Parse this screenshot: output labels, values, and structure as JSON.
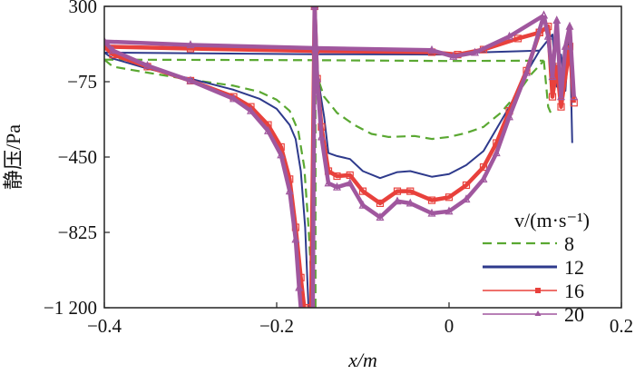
{
  "chart_data": {
    "type": "line",
    "title": "",
    "xlabel": "x/m",
    "ylabel": "静压/Pa",
    "xlim": [
      -0.4,
      0.2
    ],
    "ylim": [
      -1200,
      300
    ],
    "xticks": [
      -0.4,
      -0.2,
      0,
      0.2
    ],
    "xtick_labels": [
      "−0.4",
      "−0.2",
      "0",
      "0.2"
    ],
    "yticks": [
      300,
      -75,
      -450,
      -825,
      -1200
    ],
    "ytick_labels": [
      "300",
      "−75",
      "−450",
      "−825",
      "−1 200"
    ],
    "grid": false,
    "legend": {
      "title": "v/(m·s⁻¹)",
      "placement": "bottom-right"
    },
    "series": [
      {
        "name": "8",
        "color": "#5aa832",
        "style": "dashed",
        "marker": "none",
        "branches": [
          [
            [
              -0.4,
              35
            ],
            [
              -0.155,
              32
            ],
            [
              0,
              28
            ],
            [
              0.11,
              30
            ]
          ],
          [
            [
              -0.4,
              35
            ],
            [
              -0.39,
              0
            ],
            [
              -0.35,
              -30
            ],
            [
              -0.3,
              -65
            ],
            [
              -0.25,
              -95
            ],
            [
              -0.22,
              -125
            ],
            [
              -0.2,
              -165
            ],
            [
              -0.185,
              -220
            ],
            [
              -0.175,
              -320
            ],
            [
              -0.168,
              -500
            ],
            [
              -0.163,
              -800
            ],
            [
              -0.158,
              -1200
            ]
          ],
          [
            [
              -0.155,
              -1200
            ],
            [
              -0.155,
              300
            ],
            [
              -0.152,
              -60
            ],
            [
              -0.145,
              -150
            ],
            [
              -0.13,
              -230
            ],
            [
              -0.11,
              -290
            ],
            [
              -0.09,
              -335
            ],
            [
              -0.07,
              -350
            ],
            [
              -0.04,
              -345
            ],
            [
              -0.02,
              -360
            ],
            [
              0,
              -350
            ],
            [
              0.02,
              -330
            ],
            [
              0.04,
              -300
            ],
            [
              0.06,
              -230
            ],
            [
              0.08,
              -130
            ],
            [
              0.095,
              -40
            ],
            [
              0.11,
              30
            ]
          ],
          [
            [
              0.11,
              30
            ],
            [
              0.115,
              -200
            ],
            [
              0.12,
              -250
            ]
          ]
        ]
      },
      {
        "name": "12",
        "color": "#2e3a8c",
        "style": "solid",
        "marker": "none",
        "branches": [
          [
            [
              -0.4,
              70
            ],
            [
              -0.155,
              62
            ],
            [
              0,
              60
            ],
            [
              0.03,
              70
            ],
            [
              0.105,
              80
            ]
          ],
          [
            [
              -0.4,
              70
            ],
            [
              -0.39,
              40
            ],
            [
              -0.35,
              -10
            ],
            [
              -0.3,
              -60
            ],
            [
              -0.25,
              -115
            ],
            [
              -0.22,
              -160
            ],
            [
              -0.2,
              -210
            ],
            [
              -0.185,
              -290
            ],
            [
              -0.178,
              -360
            ],
            [
              -0.172,
              -520
            ],
            [
              -0.167,
              -800
            ],
            [
              -0.163,
              -1200
            ]
          ],
          [
            [
              -0.16,
              -1200
            ],
            [
              -0.156,
              300
            ],
            [
              -0.152,
              -60
            ],
            [
              -0.145,
              -250
            ],
            [
              -0.14,
              -430
            ],
            [
              -0.13,
              -445
            ],
            [
              -0.115,
              -460
            ],
            [
              -0.1,
              -520
            ],
            [
              -0.08,
              -555
            ],
            [
              -0.06,
              -525
            ],
            [
              -0.045,
              -520
            ],
            [
              -0.02,
              -548
            ],
            [
              0,
              -535
            ],
            [
              0.02,
              -490
            ],
            [
              0.04,
              -420
            ],
            [
              0.055,
              -310
            ],
            [
              0.07,
              -200
            ],
            [
              0.09,
              -30
            ],
            [
              0.105,
              80
            ]
          ],
          [
            [
              0.105,
              80
            ],
            [
              0.12,
              160
            ],
            [
              0.125,
              -100
            ],
            [
              0.13,
              60
            ],
            [
              0.135,
              -120
            ],
            [
              0.14,
              200
            ],
            [
              0.143,
              -380
            ]
          ]
        ]
      },
      {
        "name": "16",
        "color": "#e8413c",
        "style": "solid",
        "marker": "square",
        "branches": [
          [
            [
              -0.4,
              100
            ],
            [
              -0.3,
              90
            ],
            [
              -0.155,
              78
            ],
            [
              -0.02,
              72
            ],
            [
              0.01,
              60
            ],
            [
              0.04,
              85
            ],
            [
              0.08,
              140
            ],
            [
              0.105,
              170
            ]
          ],
          [
            [
              -0.4,
              100
            ],
            [
              -0.39,
              60
            ],
            [
              -0.35,
              0
            ],
            [
              -0.3,
              -70
            ],
            [
              -0.25,
              -150
            ],
            [
              -0.23,
              -200
            ],
            [
              -0.21,
              -290
            ],
            [
              -0.195,
              -400
            ],
            [
              -0.185,
              -560
            ],
            [
              -0.178,
              -800
            ],
            [
              -0.172,
              -1050
            ],
            [
              -0.168,
              -1200
            ]
          ],
          [
            [
              -0.16,
              -1200
            ],
            [
              -0.156,
              300
            ],
            [
              -0.153,
              -60
            ],
            [
              -0.148,
              -300
            ],
            [
              -0.14,
              -520
            ],
            [
              -0.13,
              -545
            ],
            [
              -0.115,
              -540
            ],
            [
              -0.1,
              -620
            ],
            [
              -0.08,
              -680
            ],
            [
              -0.06,
              -620
            ],
            [
              -0.045,
              -620
            ],
            [
              -0.02,
              -665
            ],
            [
              0,
              -650
            ],
            [
              0.02,
              -590
            ],
            [
              0.04,
              -500
            ],
            [
              0.055,
              -380
            ],
            [
              0.07,
              -220
            ],
            [
              0.09,
              -20
            ],
            [
              0.105,
              170
            ]
          ],
          [
            [
              0.105,
              170
            ],
            [
              0.115,
              200
            ],
            [
              0.12,
              -150
            ],
            [
              0.125,
              0
            ],
            [
              0.13,
              -200
            ],
            [
              0.14,
              100
            ],
            [
              0.145,
              -180
            ]
          ]
        ]
      },
      {
        "name": "20",
        "color": "#a0579e",
        "style": "solid",
        "marker": "triangle",
        "branches": [
          [
            [
              -0.4,
              125
            ],
            [
              -0.3,
              108
            ],
            [
              -0.155,
              92
            ],
            [
              -0.02,
              82
            ],
            [
              0.005,
              50
            ],
            [
              0.03,
              70
            ],
            [
              0.07,
              150
            ],
            [
              0.11,
              255
            ]
          ],
          [
            [
              -0.4,
              125
            ],
            [
              -0.39,
              80
            ],
            [
              -0.35,
              5
            ],
            [
              -0.3,
              -70
            ],
            [
              -0.25,
              -160
            ],
            [
              -0.23,
              -220
            ],
            [
              -0.21,
              -320
            ],
            [
              -0.195,
              -440
            ],
            [
              -0.185,
              -620
            ],
            [
              -0.178,
              -860
            ],
            [
              -0.174,
              -1100
            ],
            [
              -0.172,
              -1200
            ]
          ],
          [
            [
              -0.158,
              -1200
            ],
            [
              -0.156,
              300
            ],
            [
              -0.153,
              -60
            ],
            [
              -0.148,
              -350
            ],
            [
              -0.14,
              -580
            ],
            [
              -0.13,
              -600
            ],
            [
              -0.115,
              -580
            ],
            [
              -0.1,
              -690
            ],
            [
              -0.08,
              -750
            ],
            [
              -0.06,
              -670
            ],
            [
              -0.045,
              -680
            ],
            [
              -0.02,
              -730
            ],
            [
              0,
              -720
            ],
            [
              0.02,
              -660
            ],
            [
              0.04,
              -560
            ],
            [
              0.055,
              -430
            ],
            [
              0.07,
              -250
            ],
            [
              0.09,
              -30
            ],
            [
              0.11,
              255
            ]
          ],
          [
            [
              0.11,
              255
            ],
            [
              0.115,
              150
            ],
            [
              0.12,
              -50
            ],
            [
              0.125,
              230
            ],
            [
              0.13,
              -150
            ],
            [
              0.135,
              100
            ],
            [
              0.14,
              200
            ],
            [
              0.145,
              -150
            ]
          ]
        ]
      }
    ]
  }
}
